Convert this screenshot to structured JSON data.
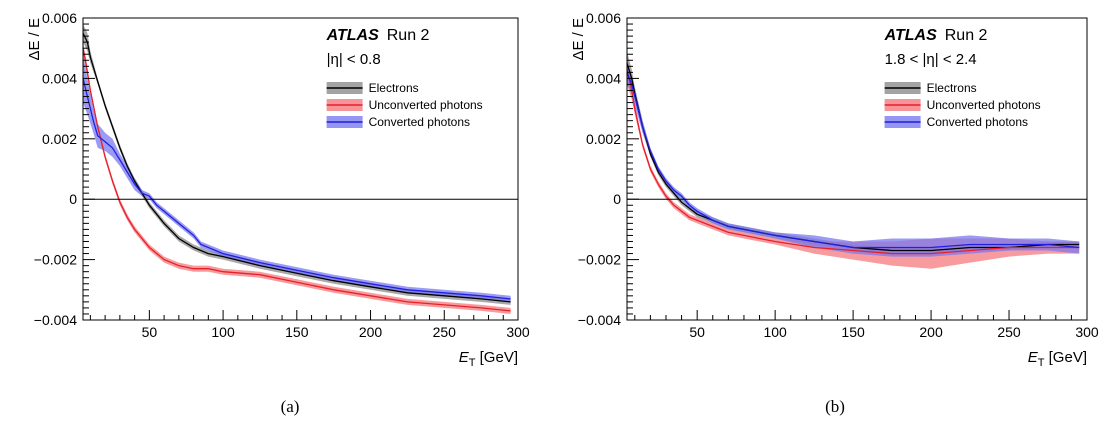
{
  "chart_data": [
    {
      "type": "line",
      "panel_label": "(a)",
      "experiment": "ATLAS",
      "run": "Run 2",
      "region": "|η| < 0.8",
      "xlabel_main": "E",
      "xlabel_sub": "T",
      "xlabel_unit": " [GeV]",
      "ylabel": "ΔE / E",
      "xlim": [
        5,
        300
      ],
      "ylim": [
        -0.004,
        0.006
      ],
      "xticks": [
        50,
        100,
        150,
        200,
        250,
        300
      ],
      "yticks": [
        -0.004,
        -0.002,
        0,
        0.002,
        0.004,
        0.006
      ],
      "xtick_labels": [
        "50",
        "100",
        "150",
        "200",
        "250",
        "300"
      ],
      "ytick_labels": [
        "−0.004",
        "−0.002",
        "0",
        "0.002",
        "0.004",
        "0.006"
      ],
      "legend_position": "top-right",
      "series": [
        {
          "name": "Electrons",
          "color": "#000000",
          "band_color": "#8c8c8c",
          "x": [
            5,
            8,
            10,
            15,
            20,
            25,
            30,
            35,
            40,
            45,
            50,
            60,
            70,
            80,
            90,
            100,
            125,
            150,
            175,
            200,
            225,
            250,
            275,
            295
          ],
          "y": [
            0.0055,
            0.0052,
            0.0047,
            0.0039,
            0.0031,
            0.0024,
            0.0017,
            0.0011,
            0.0006,
            0.0002,
            -0.0002,
            -0.0008,
            -0.0013,
            -0.0016,
            -0.0018,
            -0.0019,
            -0.0022,
            -0.00245,
            -0.0027,
            -0.0029,
            -0.0031,
            -0.0032,
            -0.0033,
            -0.0034
          ],
          "err": [
            0.0003,
            0.0003,
            0.0002,
            0.0001,
            0.0001,
            0.0001,
            0.0001,
            0.0001,
            0.0001,
            0.0001,
            0.0001,
            0.0001,
            0.0001,
            0.0001,
            0.0001,
            0.0001,
            0.0001,
            0.0001,
            0.0001,
            0.0001,
            0.0001,
            0.0001,
            0.0001,
            0.0001
          ]
        },
        {
          "name": "Unconverted photons",
          "color": "#e8202a",
          "band_color": "#f47a7f",
          "x": [
            5,
            7,
            10,
            15,
            20,
            25,
            30,
            35,
            40,
            50,
            60,
            70,
            80,
            90,
            100,
            125,
            150,
            175,
            200,
            225,
            250,
            275,
            295
          ],
          "y": [
            0.005,
            0.0045,
            0.0036,
            0.0024,
            0.0014,
            0.0006,
            -0.0001,
            -0.0006,
            -0.001,
            -0.0016,
            -0.002,
            -0.0022,
            -0.0023,
            -0.0023,
            -0.0024,
            -0.0025,
            -0.00275,
            -0.003,
            -0.0032,
            -0.0034,
            -0.0035,
            -0.0036,
            -0.0037
          ],
          "err": [
            0.0002,
            0.0002,
            0.0001,
            0.0001,
            0.0001,
            0.0001,
            0.0001,
            0.0001,
            0.0001,
            0.0001,
            0.0001,
            0.0001,
            0.0001,
            0.0001,
            0.0001,
            0.0001,
            0.0001,
            0.0001,
            0.0001,
            0.0001,
            0.0001,
            0.0001,
            0.0001
          ]
        },
        {
          "name": "Converted photons",
          "color": "#2020e0",
          "band_color": "#7a7af0",
          "x": [
            5,
            8,
            10,
            12,
            15,
            20,
            25,
            30,
            35,
            40,
            45,
            50,
            55,
            60,
            70,
            80,
            85,
            90,
            100,
            125,
            150,
            175,
            200,
            225,
            250,
            275,
            295
          ],
          "y": [
            0.004,
            0.0034,
            0.003,
            0.0026,
            0.0021,
            0.0019,
            0.0017,
            0.0013,
            0.0009,
            0.0005,
            0.0002,
            0.0001,
            -0.0002,
            -0.0004,
            -0.0008,
            -0.0012,
            -0.0015,
            -0.0016,
            -0.0018,
            -0.0021,
            -0.00235,
            -0.0026,
            -0.0028,
            -0.003,
            -0.0031,
            -0.0032,
            -0.0033
          ],
          "err": [
            0.0008,
            0.0006,
            0.0005,
            0.0004,
            0.0004,
            0.0003,
            0.0003,
            0.0002,
            0.0002,
            0.0002,
            0.0001,
            0.0001,
            0.0001,
            0.0001,
            0.0001,
            0.0001,
            0.0001,
            0.0001,
            0.0001,
            0.0001,
            0.0001,
            0.0001,
            0.0001,
            0.0001,
            0.0001,
            0.0001,
            0.0001
          ]
        }
      ]
    },
    {
      "type": "line",
      "panel_label": "(b)",
      "experiment": "ATLAS",
      "run": "Run 2",
      "region": "1.8 < |η| < 2.4",
      "xlabel_main": "E",
      "xlabel_sub": "T",
      "xlabel_unit": " [GeV]",
      "ylabel": "ΔE / E",
      "xlim": [
        5,
        300
      ],
      "ylim": [
        -0.004,
        0.006
      ],
      "xticks": [
        50,
        100,
        150,
        200,
        250,
        300
      ],
      "yticks": [
        -0.004,
        -0.002,
        0,
        0.002,
        0.004,
        0.006
      ],
      "xtick_labels": [
        "50",
        "100",
        "150",
        "200",
        "250",
        "300"
      ],
      "ytick_labels": [
        "−0.004",
        "−0.002",
        "0",
        "0.002",
        "0.004",
        "0.006"
      ],
      "legend_position": "top-right",
      "series": [
        {
          "name": "Electrons",
          "color": "#000000",
          "band_color": "#8c8c8c",
          "x": [
            5,
            8,
            10,
            15,
            20,
            25,
            30,
            35,
            40,
            45,
            50,
            60,
            70,
            80,
            90,
            100,
            125,
            150,
            175,
            200,
            225,
            250,
            275,
            295
          ],
          "y": [
            0.0045,
            0.004,
            0.0035,
            0.0024,
            0.0015,
            0.0009,
            0.0005,
            0.0002,
            -0.0001,
            -0.0003,
            -0.0005,
            -0.0007,
            -0.0009,
            -0.001,
            -0.0011,
            -0.0012,
            -0.0014,
            -0.0016,
            -0.0017,
            -0.0017,
            -0.0016,
            -0.0016,
            -0.0015,
            -0.0015
          ],
          "err": [
            0.0004,
            0.0003,
            0.0002,
            0.0002,
            0.0001,
            0.0001,
            0.0001,
            0.0001,
            0.0001,
            0.0001,
            0.0001,
            0.0001,
            0.0001,
            0.0001,
            0.0001,
            0.0001,
            0.0001,
            0.0001,
            0.0001,
            0.0001,
            0.0001,
            0.0001,
            0.0001,
            0.0001
          ]
        },
        {
          "name": "Unconverted photons",
          "color": "#e8202a",
          "band_color": "#f47a7f",
          "x": [
            5,
            8,
            10,
            15,
            20,
            25,
            30,
            35,
            40,
            45,
            50,
            60,
            70,
            80,
            90,
            100,
            125,
            150,
            175,
            200,
            225,
            250,
            275,
            295
          ],
          "y": [
            0.0043,
            0.0036,
            0.003,
            0.0018,
            0.001,
            0.0005,
            0.0001,
            -0.0002,
            -0.0004,
            -0.0006,
            -0.0007,
            -0.0009,
            -0.0011,
            -0.0012,
            -0.0013,
            -0.0014,
            -0.0016,
            -0.0017,
            -0.0018,
            -0.0018,
            -0.0017,
            -0.0016,
            -0.0016,
            -0.0016
          ],
          "err": [
            0.0005,
            0.0003,
            0.0002,
            0.0001,
            0.0001,
            0.0001,
            0.0001,
            0.0001,
            0.0001,
            0.0001,
            0.0001,
            0.0001,
            0.0001,
            0.0001,
            0.0001,
            0.0001,
            0.0002,
            0.0003,
            0.0004,
            0.0005,
            0.0004,
            0.0003,
            0.0002,
            0.0002
          ]
        },
        {
          "name": "Converted photons",
          "color": "#2020e0",
          "band_color": "#7a7af0",
          "x": [
            5,
            8,
            10,
            15,
            20,
            25,
            30,
            35,
            40,
            45,
            50,
            60,
            70,
            80,
            90,
            100,
            125,
            150,
            175,
            200,
            225,
            250,
            275,
            295
          ],
          "y": [
            0.0042,
            0.0038,
            0.0034,
            0.0024,
            0.0016,
            0.001,
            0.0006,
            0.0003,
            0.0001,
            -0.0002,
            -0.0004,
            -0.0007,
            -0.0009,
            -0.001,
            -0.0011,
            -0.0012,
            -0.0014,
            -0.0016,
            -0.0016,
            -0.0016,
            -0.0015,
            -0.0015,
            -0.0015,
            -0.0016
          ],
          "err": [
            0.0004,
            0.0003,
            0.0003,
            0.0002,
            0.0001,
            0.0001,
            0.0001,
            0.0001,
            0.0001,
            0.0001,
            0.0001,
            0.0001,
            0.0001,
            0.0001,
            0.0001,
            0.0001,
            0.0002,
            0.0002,
            0.0003,
            0.0003,
            0.0003,
            0.0002,
            0.0002,
            0.0002
          ]
        }
      ]
    }
  ]
}
